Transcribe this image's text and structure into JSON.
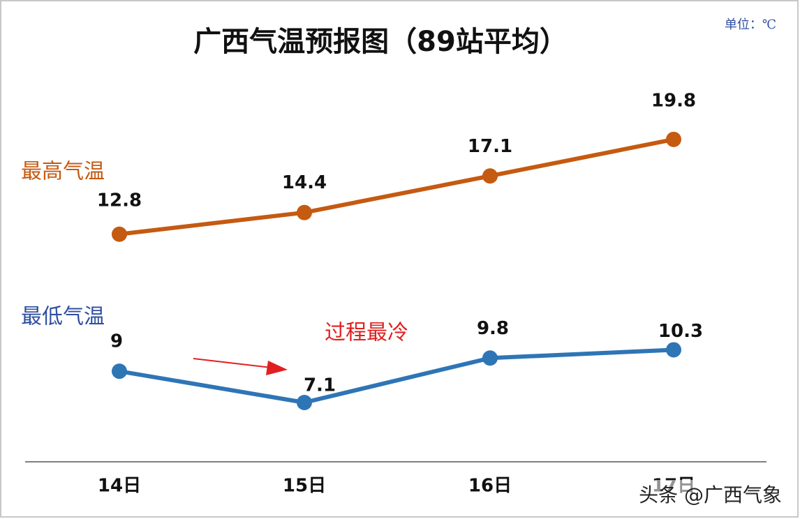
{
  "chart_data": {
    "type": "line",
    "title": "广西气温预报图（89站平均）",
    "unit_note": "单位：℃",
    "categories": [
      "14日",
      "15日",
      "16日",
      "17日"
    ],
    "series": [
      {
        "name": "最高气温",
        "color": "#c55a11",
        "values": [
          12.8,
          14.4,
          17.1,
          19.8
        ]
      },
      {
        "name": "最低气温",
        "color": "#2e75b6",
        "axis": "y2",
        "values": [
          9,
          7.1,
          9.8,
          10.3
        ]
      }
    ],
    "ylim": [
      -4,
      27
    ],
    "y2lim": [
      3.5,
      29
    ],
    "annotation": "过程最冷",
    "watermark": "头条 @广西气象"
  }
}
